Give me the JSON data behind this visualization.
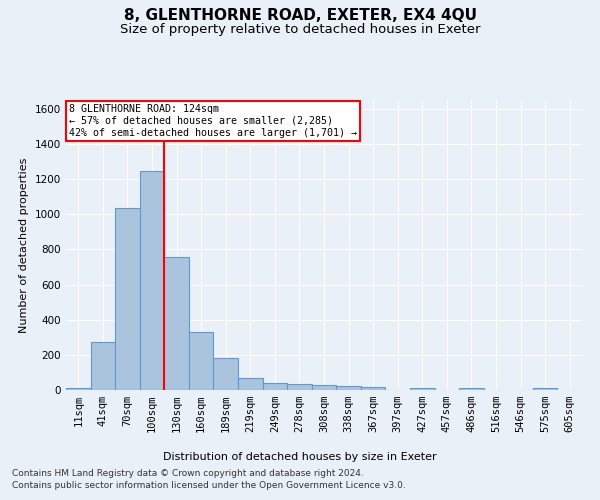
{
  "title": "8, GLENTHORNE ROAD, EXETER, EX4 4QU",
  "subtitle": "Size of property relative to detached houses in Exeter",
  "xlabel": "Distribution of detached houses by size in Exeter",
  "ylabel": "Number of detached properties",
  "footer_line1": "Contains HM Land Registry data © Crown copyright and database right 2024.",
  "footer_line2": "Contains public sector information licensed under the Open Government Licence v3.0.",
  "bar_labels": [
    "11sqm",
    "41sqm",
    "70sqm",
    "100sqm",
    "130sqm",
    "160sqm",
    "189sqm",
    "219sqm",
    "249sqm",
    "278sqm",
    "308sqm",
    "338sqm",
    "367sqm",
    "397sqm",
    "427sqm",
    "457sqm",
    "486sqm",
    "516sqm",
    "546sqm",
    "575sqm",
    "605sqm"
  ],
  "bar_values": [
    10,
    275,
    1035,
    1245,
    755,
    330,
    180,
    70,
    42,
    35,
    28,
    20,
    15,
    0,
    14,
    0,
    14,
    0,
    0,
    14,
    0
  ],
  "bar_color": "#aac4de",
  "bar_edge_color": "#5b9bd5",
  "ylim": [
    0,
    1650
  ],
  "yticks": [
    0,
    200,
    400,
    600,
    800,
    1000,
    1200,
    1400,
    1600
  ],
  "property_label": "8 GLENTHORNE ROAD: 124sqm",
  "annotation_line1": "← 57% of detached houses are smaller (2,285)",
  "annotation_line2": "42% of semi-detached houses are larger (1,701) →",
  "vline_x_index": 3.5,
  "background_color": "#eaf0f8",
  "plot_bg_color": "#eaf0f8",
  "grid_color": "#ffffff",
  "title_fontsize": 11,
  "subtitle_fontsize": 9.5,
  "axis_label_fontsize": 8,
  "tick_fontsize": 7.5,
  "footer_fontsize": 6.5
}
